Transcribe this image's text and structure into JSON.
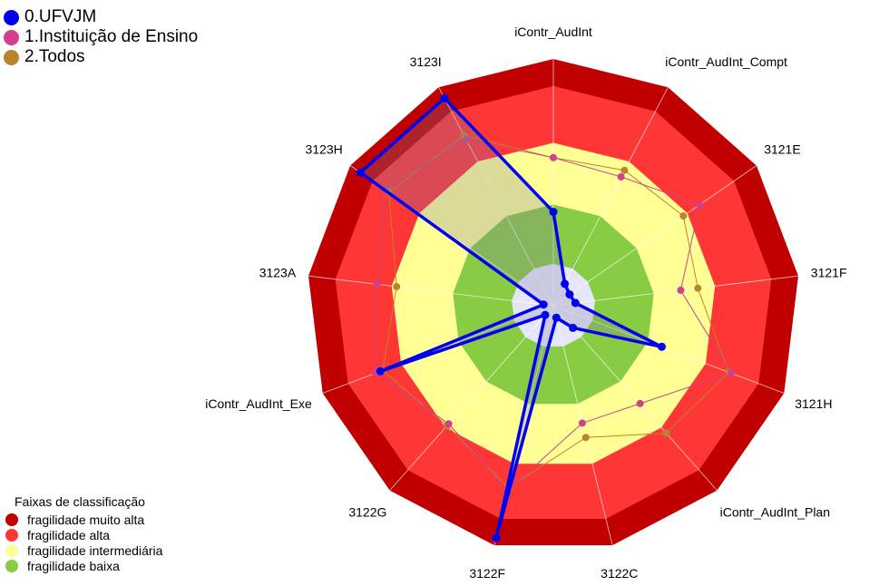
{
  "chart_data": {
    "type": "radar",
    "title": "",
    "axes": [
      "iContr_AudInt",
      "iContr_AudInt_Compt",
      "3121E",
      "3121F",
      "3121H",
      "iContr_AudInt_Plan",
      "3122C",
      "3122F",
      "3122G",
      "iContr_AudInt_Exe",
      "3123A",
      "3123H",
      "3123I"
    ],
    "rlim": [
      0,
      1
    ],
    "series": [
      {
        "name": "0.UFVJM",
        "color": "#0000ee",
        "values": [
          0.38,
          0.1,
          0.08,
          0.09,
          0.47,
          0.12,
          0.05,
          0.97,
          0.05,
          0.75,
          0.04,
          0.95,
          0.95
        ]
      },
      {
        "name": "1.Instituição de Ensino",
        "color": "#d0408c",
        "values": [
          0.6,
          0.59,
          0.72,
          0.52,
          0.77,
          0.53,
          0.49,
          0.77,
          0.64,
          0.77,
          0.72,
          0.83,
          0.76
        ]
      },
      {
        "name": "2.Todos",
        "color": "#b8862a",
        "values": [
          0.6,
          0.62,
          0.64,
          0.59,
          0.76,
          0.69,
          0.55,
          0.76,
          0.65,
          0.74,
          0.64,
          0.81,
          0.78
        ]
      }
    ],
    "bands": {
      "title": "Faixas de classificação",
      "items": [
        {
          "label": "fragilidade muito alta",
          "color": "#c00000"
        },
        {
          "label": "fragilidade alta",
          "color": "#ff3636"
        },
        {
          "label": "fragilidade intermediária",
          "color": "#ffff96"
        },
        {
          "label": "fragilidade baixa",
          "color": "#88cc44"
        }
      ]
    }
  }
}
